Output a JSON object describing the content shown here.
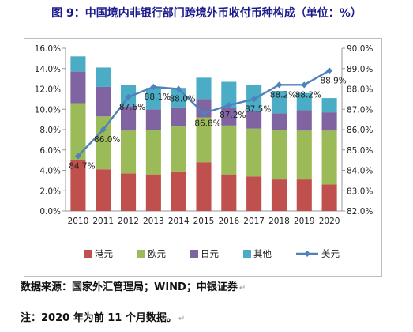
{
  "figure": {
    "title": "图 9：中国境内非银行部门跨境外币收付币种构成（单位：%）",
    "source_note": "数据来源：国家外汇管理局；WIND；中银证券",
    "footnote": "注：2020 年为前 11 个月数据。",
    "return_mark": "↵"
  },
  "chart_data": {
    "type": "bar",
    "stacked": true,
    "categories": [
      "2010",
      "2011",
      "2012",
      "2013",
      "2014",
      "2015",
      "2016",
      "2017",
      "2018",
      "2019",
      "2020"
    ],
    "series": [
      {
        "name": "港元",
        "axis": "left",
        "color": "#c0504d",
        "values": [
          5.0,
          4.1,
          3.7,
          3.6,
          3.9,
          4.8,
          3.6,
          3.4,
          3.1,
          3.1,
          2.6
        ]
      },
      {
        "name": "欧元",
        "axis": "left",
        "color": "#9bbb59",
        "values": [
          5.6,
          5.2,
          4.2,
          4.4,
          4.4,
          4.4,
          4.8,
          4.7,
          4.9,
          4.8,
          5.3
        ]
      },
      {
        "name": "日元",
        "axis": "left",
        "color": "#8064a2",
        "values": [
          3.1,
          2.9,
          2.4,
          2.0,
          1.9,
          1.8,
          1.7,
          1.7,
          1.6,
          2.0,
          1.8
        ]
      },
      {
        "name": "其他",
        "axis": "left",
        "color": "#4bacc6",
        "values": [
          1.5,
          1.9,
          2.1,
          2.1,
          1.9,
          2.1,
          2.6,
          2.6,
          2.2,
          1.7,
          1.4
        ]
      },
      {
        "name": "美元",
        "axis": "right",
        "type": "line",
        "color": "#4f81bd",
        "values": [
          84.7,
          86.0,
          87.6,
          88.1,
          88.0,
          86.8,
          87.2,
          87.5,
          88.2,
          88.2,
          88.9
        ],
        "labels": [
          "84.7%",
          "86.0%",
          "87.6%",
          "88.1%",
          "88.0%",
          "86.8%",
          "87.2%",
          "87.5%",
          "88.2%",
          "88.2%",
          "88.9%"
        ]
      }
    ],
    "left_axis": {
      "min": 0,
      "max": 16,
      "step": 2,
      "tick_labels": [
        "0.0%",
        "2.0%",
        "4.0%",
        "6.0%",
        "8.0%",
        "10.0%",
        "12.0%",
        "14.0%",
        "16.0%"
      ]
    },
    "right_axis": {
      "min": 82,
      "max": 90,
      "step": 1,
      "tick_labels": [
        "82.0%",
        "83.0%",
        "84.0%",
        "85.0%",
        "86.0%",
        "87.0%",
        "88.0%",
        "89.0%",
        "90.0%"
      ]
    },
    "grid": false,
    "legend_position": "bottom"
  }
}
